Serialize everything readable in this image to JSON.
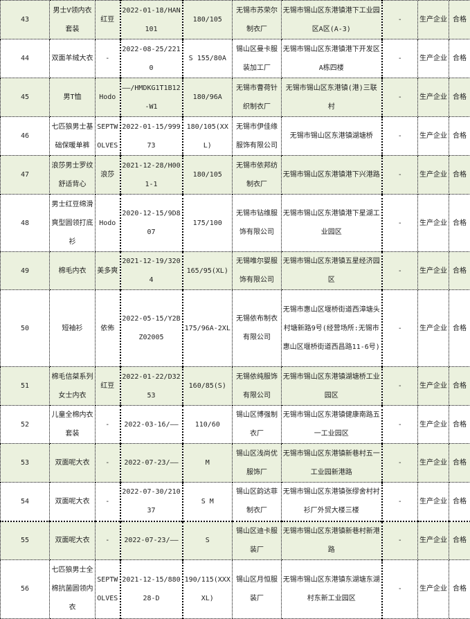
{
  "colors": {
    "shaded_row": "#ebf1de",
    "border": "#000000"
  },
  "rows": [
    {
      "no": "43",
      "name": "男士V领内衣套装",
      "brand": "红豆",
      "date_batch": "2022-01-18/HAN101",
      "spec": "180/105",
      "manufacturer": "无锡市苏荣尔制衣厂",
      "address": "无锡市锡山区东港镇港下工业园区A区(A-3)",
      "extra": "-",
      "type": "生产企业",
      "result": "合格"
    },
    {
      "no": "44",
      "name": "双面羊绒大衣",
      "brand": "-",
      "date_batch": "2022-08-25/2210",
      "spec": "S 155/80A",
      "manufacturer": "锡山区曼卡服装加工厂",
      "address": "无锡市锡山区东港镇港下开发区A栋四楼",
      "extra": "-",
      "type": "生产企业",
      "result": "合格"
    },
    {
      "no": "45",
      "name": "男T恤",
      "brand": "Hodo",
      "date_batch": "——/HMDKG1T1B12-W1",
      "spec": "180/96A",
      "manufacturer": "无锡市曹荷针织制衣厂",
      "address": "无锡市锡山区东港镇(港)三联村",
      "extra": "-",
      "type": "生产企业",
      "result": "合格"
    },
    {
      "no": "46",
      "name": "七匹狼男士基础保暖单裤",
      "brand": "SEPTWOLVES",
      "date_batch": "2022-01-15/99973",
      "spec": "180/105(XXL)",
      "manufacturer": "无锡市伊佳缘服饰有限公司",
      "address": "无锡市锡山区东港镇湖塘桥",
      "extra": "-",
      "type": "生产企业",
      "result": "合格"
    },
    {
      "no": "47",
      "name": "浪莎男士罗纹舒适背心",
      "brand": "浪莎",
      "date_batch": "2021-12-28/H001-1",
      "spec": "180/105",
      "manufacturer": "无锡市依邦纺制衣厂",
      "address": "无锡市锡山区东港镇港下兴港路",
      "extra": "-",
      "type": "生产企业",
      "result": "合格"
    },
    {
      "no": "48",
      "name": "男士红豆绵滑爽型圆领打底衫",
      "brand": "Hodo",
      "date_batch": "2020-12-15/9D807",
      "spec": "175/100",
      "manufacturer": "无锡市钻维服饰有限公司",
      "address": "无锡市锡山区东港镇港下星湖工业园区",
      "extra": "-",
      "type": "生产企业",
      "result": "合格"
    },
    {
      "no": "49",
      "name": "棉毛内衣",
      "brand": "美多爽",
      "date_batch": "2021-12-19/3204",
      "spec": "165/95(XL)",
      "manufacturer": "无锡唯尔婴服饰有限公司",
      "address": "无锡市锡山区东港镇五星经济园区",
      "extra": "-",
      "type": "生产企业",
      "result": "合格"
    },
    {
      "no": "50",
      "name": "短袖衫",
      "brand": "依佈",
      "date_batch": "2022-05-15/Y2BZ02005",
      "spec": "175/96A-2XL",
      "manufacturer": "无锡依布制衣有限公司",
      "address": "无锡市惠山区堰桥街道西漳塘头村塘新路9号(经营场所:无锡市惠山区堰桥街道西昌路11-6号)",
      "extra": "-",
      "type": "生产企业",
      "result": "合格"
    },
    {
      "no": "51",
      "name": "棉毛信桀系列女士内衣",
      "brand": "红豆",
      "date_batch": "2022-01-22/D3253",
      "spec": "160/85(S)",
      "manufacturer": "无锡依纯服饰有限公司",
      "address": "无锡市锡山区东港镇湖塘桥工业园区",
      "extra": "-",
      "type": "生产企业",
      "result": "合格"
    },
    {
      "no": "52",
      "name": "儿童全棉内衣套装",
      "brand": "-",
      "date_batch": "2022-03-16/——",
      "spec": "110/60",
      "manufacturer": "锡山区博强制衣厂",
      "address": "无锡市锡山区东港镇健康南路五一工业园区",
      "extra": "-",
      "type": "生产企业",
      "result": "合格"
    },
    {
      "no": "53",
      "name": "双面呢大衣",
      "brand": "-",
      "date_batch": "2022-07-23/——",
      "spec": "M",
      "manufacturer": "锡山区浅尚优服饰厂",
      "address": "无锡市锡山区东港镇新巷村五一工业园新港路",
      "extra": "-",
      "type": "生产企业",
      "result": "合格"
    },
    {
      "no": "54",
      "name": "双面呢大衣",
      "brand": "-",
      "date_batch": "2022-07-30/21037",
      "spec": "S M",
      "manufacturer": "锡山区韵达菲制衣厂",
      "address": "无锡市锡山区东港镇张缪舍村衬衫厂外贸大楼三楼",
      "extra": "-",
      "type": "生产企业",
      "result": "合格"
    },
    {
      "no": "55",
      "name": "双面呢大衣",
      "brand": "-",
      "date_batch": "2022-07-23/——",
      "spec": "S",
      "manufacturer": "锡山区迪卡服装厂",
      "address": "无锡市锡山区东港镇新巷村新港路",
      "extra": "-",
      "type": "生产企业",
      "result": "合格"
    },
    {
      "no": "56",
      "name": "七匹狼男士全棉抗菌圆领内衣",
      "brand": "SEPTWOLVES",
      "date_batch": "2021-12-15/88028-D",
      "spec": "190/115(XXXXL)",
      "manufacturer": "锡山区月恒服装厂",
      "address": "无锡市锡山区东港镇东湖塘东湖村东新工业园区",
      "extra": "-",
      "type": "生产企业",
      "result": "合格"
    }
  ]
}
